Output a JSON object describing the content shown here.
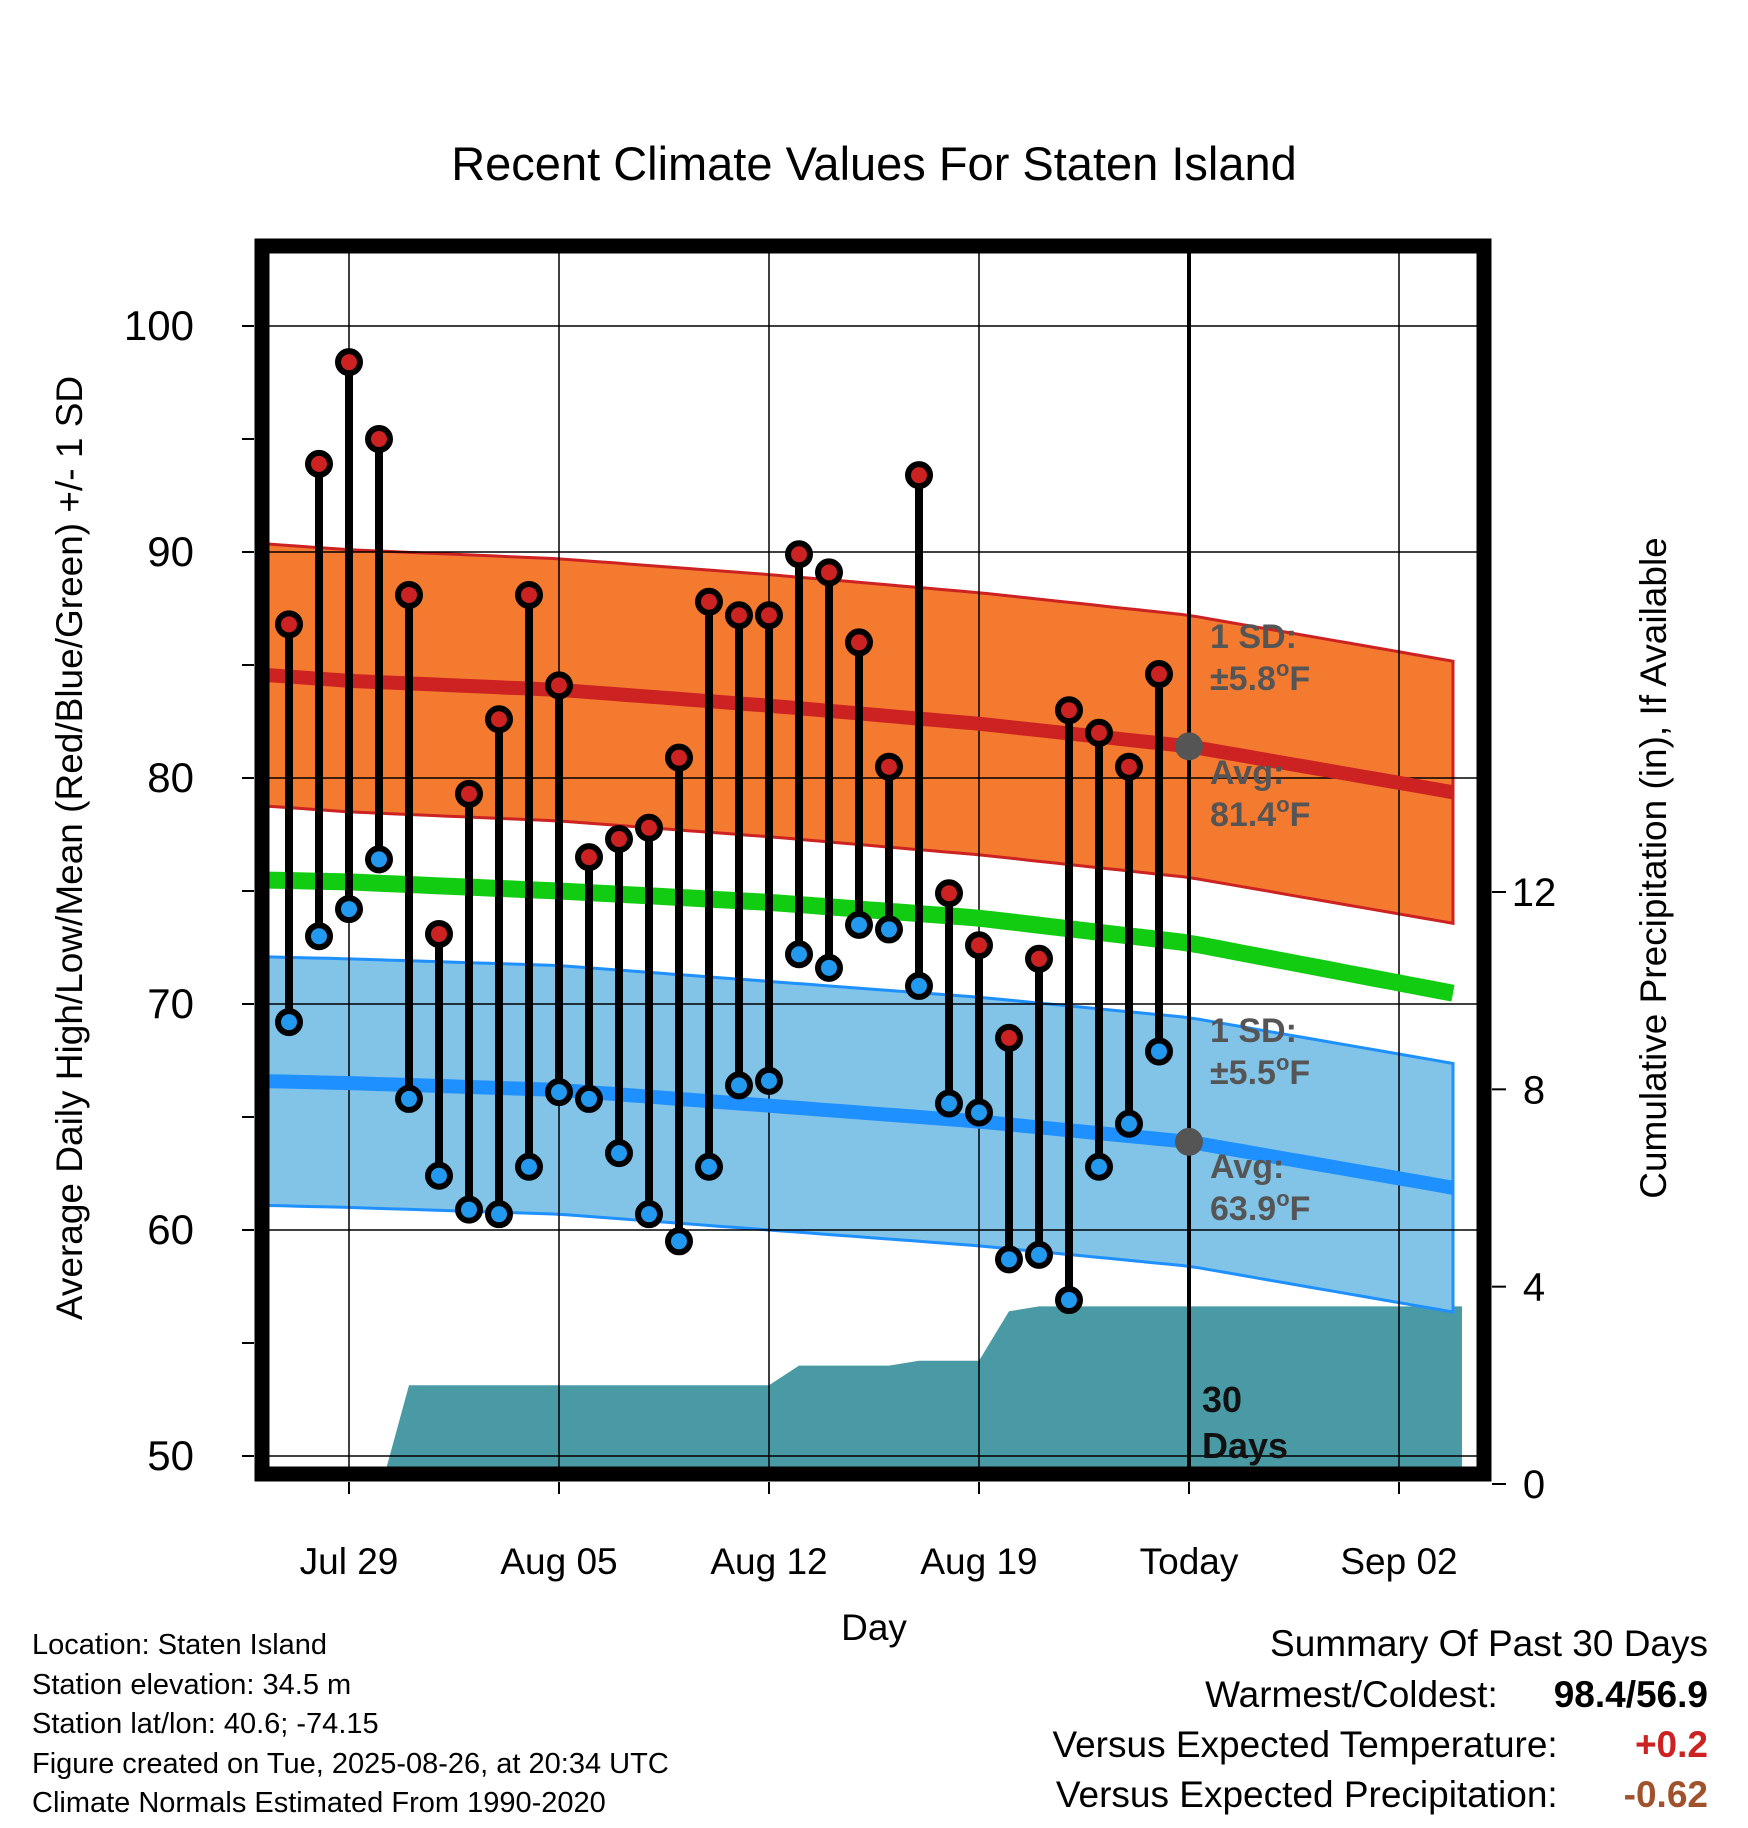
{
  "chart_data": {
    "type": "line",
    "title": "Recent Climate Values For Staten Island",
    "xlabel": "Day",
    "ylabel": "Average Daily High/Low/Mean (Red/Blue/Green) +/- 1 SD",
    "y2label": "Cumulative Precipitation (in), If Available",
    "ylim": [
      49,
      104
    ],
    "y2lim": [
      0,
      24
    ],
    "yticks": [
      50,
      60,
      70,
      80,
      90,
      100
    ],
    "y2ticks": [
      0,
      4,
      8,
      12
    ],
    "xlim": [
      -3.2,
      37.1
    ],
    "xticks": [
      {
        "day": 0,
        "label": "Jul 29"
      },
      {
        "day": 7,
        "label": "Aug 05"
      },
      {
        "day": 14,
        "label": "Aug 12"
      },
      {
        "day": 21,
        "label": "Aug 19"
      },
      {
        "day": 28,
        "label": "Today"
      },
      {
        "day": 35,
        "label": "Sep 02"
      }
    ],
    "today_day": 28,
    "grid": true,
    "series": [
      {
        "name": "High",
        "color": "#cc2222",
        "days": [
          -2,
          -1,
          0,
          1,
          2,
          3,
          4,
          5,
          6,
          7,
          8,
          9,
          10,
          11,
          12,
          13,
          14,
          15,
          16,
          17,
          18,
          19,
          20,
          21,
          22,
          23,
          24,
          25,
          26,
          27
        ],
        "values": [
          86.8,
          93.9,
          98.4,
          95.0,
          88.1,
          73.1,
          79.3,
          82.6,
          88.1,
          84.1,
          76.5,
          77.3,
          77.8,
          80.9,
          87.8,
          87.2,
          87.2,
          89.9,
          89.1,
          86.0,
          80.5,
          93.4,
          74.9,
          72.6,
          68.5,
          72.0,
          83.0,
          82.0,
          80.5,
          84.6
        ]
      },
      {
        "name": "Low",
        "color": "#2299ee",
        "days": [
          -2,
          -1,
          0,
          1,
          2,
          3,
          4,
          5,
          6,
          7,
          8,
          9,
          10,
          11,
          12,
          13,
          14,
          15,
          16,
          17,
          18,
          19,
          20,
          21,
          22,
          23,
          24,
          25,
          26,
          27
        ],
        "values": [
          69.2,
          73.0,
          74.2,
          76.4,
          65.8,
          62.4,
          60.9,
          60.7,
          62.8,
          66.1,
          65.8,
          63.4,
          60.7,
          59.5,
          62.8,
          66.4,
          66.6,
          72.2,
          71.6,
          73.5,
          73.3,
          70.8,
          65.6,
          65.2,
          58.7,
          58.9,
          56.9,
          62.8,
          64.7,
          67.9
        ]
      }
    ],
    "normal_high": {
      "color": "#cc2222",
      "band_color": "#f47a30",
      "days": [
        -3.2,
        0,
        7,
        14,
        21,
        28,
        37.1
      ],
      "values": [
        84.6,
        84.3,
        83.9,
        83.2,
        82.4,
        81.4,
        79.3
      ],
      "sd": 5.8,
      "today_avg": 81.4
    },
    "normal_low": {
      "color": "#1e90ff",
      "band_color": "#82c3e8",
      "days": [
        -3.2,
        0,
        7,
        14,
        21,
        28,
        37.1
      ],
      "values": [
        66.6,
        66.5,
        66.2,
        65.5,
        64.8,
        63.9,
        61.8
      ],
      "sd": 5.5,
      "today_avg": 63.9
    },
    "normal_mean": {
      "color": "#11cc11",
      "days": [
        -3.2,
        0,
        7,
        14,
        21,
        28,
        37.1
      ],
      "values": [
        75.5,
        75.4,
        75.0,
        74.5,
        73.8,
        72.7,
        70.4
      ]
    },
    "precip": {
      "color": "#4a9aa5",
      "days": [
        1.1,
        2.0,
        14.0,
        15.0,
        18.0,
        19.0,
        21.0,
        22.0,
        23.0,
        37.1
      ],
      "values": [
        0,
        2.0,
        2.0,
        2.4,
        2.4,
        2.5,
        2.5,
        3.5,
        3.6,
        3.6
      ]
    }
  },
  "annotations": {
    "high_sd_l1": "1 SD:",
    "high_sd_l2": "±5.8",
    "high_avg_l1": "Avg:",
    "high_avg_l2": "81.4",
    "low_sd_l1": "1 SD:",
    "low_sd_l2": "±5.5",
    "low_avg_l1": "Avg:",
    "low_avg_l2": "63.9",
    "deg": "o",
    "unit": "F",
    "days_num": "30",
    "days_word": "Days"
  },
  "info": {
    "location": "Location: Staten Island",
    "elevation": "Station elevation: 34.5 m",
    "latlon": "Station lat/lon: 40.6; -74.15",
    "created": "Figure created on Tue, 2025-08-26, at 20:34 UTC",
    "normals": "Climate Normals Estimated From 1990-2020"
  },
  "summary": {
    "heading": "Summary Of Past 30 Days",
    "warm_label": "Warmest/Coldest:",
    "warm_value": "98.4/56.9",
    "temp_label": "Versus Expected Temperature:",
    "temp_value": "+0.2",
    "temp_color": "#cc2222",
    "precip_label": "Versus Expected Precipitation:",
    "precip_value": "-0.62",
    "precip_color": "#a0522d"
  }
}
